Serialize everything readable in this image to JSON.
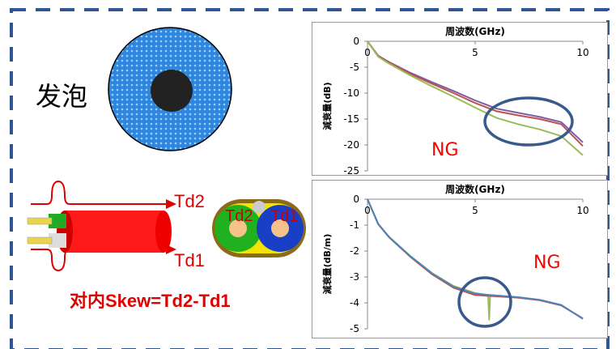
{
  "colors": {
    "frame_dash": "#2f5597",
    "foam_fill": "#2e86de",
    "core": "#222222",
    "cable_red": "#ff0000",
    "ng_red": "#ff0000",
    "highlight_ring": "#3a5a8c",
    "series_purple": "#7b5aa6",
    "series_red": "#c0504d",
    "series_green": "#9bbb59",
    "series_blue": "#4f81bd"
  },
  "left": {
    "foam_label": "发泡",
    "td2_label": "Td2",
    "td1_label": "Td1",
    "pair_td2_label": "Td2",
    "pair_td1_label": "Td1",
    "skew_formula": "对内Skew=Td2-Td1"
  },
  "chart_data": [
    {
      "type": "line",
      "title": "周波数(GHz)",
      "xlabel": "",
      "ylabel": "減衰量(dB)",
      "xlim": [
        0,
        10
      ],
      "ylim": [
        -25,
        0
      ],
      "x_ticks": [
        "0",
        "5",
        "10"
      ],
      "y_ticks": [
        "0",
        "-5",
        "-10",
        "-15",
        "-20",
        "-25"
      ],
      "annotation": "NG",
      "series": [
        {
          "color": "#7b5aa6",
          "x": [
            0,
            0.5,
            1,
            2,
            3,
            4,
            5,
            6,
            7,
            8,
            9,
            10
          ],
          "values": [
            0,
            -2.8,
            -4,
            -6.1,
            -7.9,
            -9.6,
            -11.4,
            -13.0,
            -13.8,
            -14.6,
            -15.6,
            -19.5
          ]
        },
        {
          "color": "#c0504d",
          "x": [
            0,
            0.5,
            1,
            2,
            3,
            4,
            5,
            6,
            7,
            8,
            9,
            10
          ],
          "values": [
            0,
            -2.9,
            -4.1,
            -6.3,
            -8.2,
            -10.0,
            -11.9,
            -13.5,
            -14.3,
            -15.0,
            -16.0,
            -20.2
          ]
        },
        {
          "color": "#9bbb59",
          "x": [
            0,
            0.5,
            1,
            2,
            3,
            4,
            5,
            6,
            7,
            8,
            9,
            10
          ],
          "values": [
            0,
            -3.0,
            -4.3,
            -6.6,
            -8.7,
            -10.7,
            -12.8,
            -14.8,
            -16.0,
            -17.0,
            -18.3,
            -22.0
          ]
        }
      ]
    },
    {
      "type": "line",
      "title": "周波数(GHz)",
      "xlabel": "",
      "ylabel": "減衰量(dB/m)",
      "xlim": [
        0,
        10
      ],
      "ylim": [
        -5,
        0
      ],
      "x_ticks": [
        "0",
        "5",
        "10"
      ],
      "y_ticks": [
        "0",
        "-1",
        "-2",
        "-3",
        "-4",
        "-5"
      ],
      "annotation": "NG",
      "series": [
        {
          "color": "#9bbb59",
          "x": [
            0,
            0.5,
            1,
            2,
            3,
            4,
            5,
            5.6,
            5.65,
            5.7,
            6,
            7,
            8,
            9,
            10
          ],
          "values": [
            0,
            -0.95,
            -1.45,
            -2.2,
            -2.85,
            -3.35,
            -3.62,
            -3.7,
            -4.65,
            -3.7,
            -3.72,
            -3.8,
            -3.9,
            -4.1,
            -4.6
          ]
        },
        {
          "color": "#c0504d",
          "x": [
            0,
            0.5,
            1,
            2,
            3,
            4,
            5,
            6,
            7,
            8,
            9,
            10
          ],
          "values": [
            0,
            -0.97,
            -1.47,
            -2.23,
            -2.9,
            -3.42,
            -3.7,
            -3.75,
            -3.8,
            -3.9,
            -4.1,
            -4.6
          ]
        },
        {
          "color": "#4f81bd",
          "x": [
            0,
            0.5,
            1,
            2,
            3,
            4,
            5,
            6,
            7,
            8,
            9,
            10
          ],
          "values": [
            0,
            -0.96,
            -1.46,
            -2.21,
            -2.87,
            -3.38,
            -3.65,
            -3.72,
            -3.78,
            -3.88,
            -4.08,
            -4.62
          ]
        }
      ]
    }
  ]
}
